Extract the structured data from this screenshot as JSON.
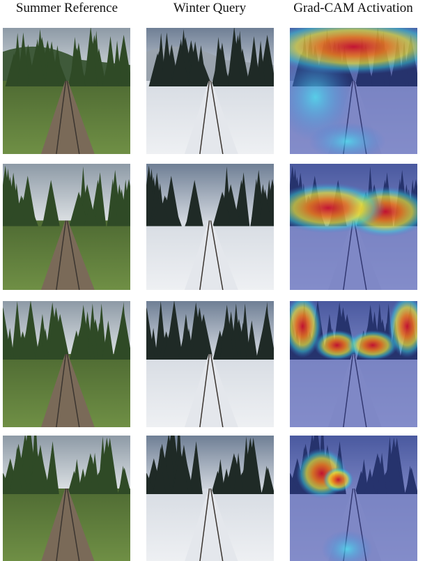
{
  "header": {
    "columns": [
      "Summer Reference",
      "Winter Query",
      "Grad-CAM Activation"
    ]
  }
}
